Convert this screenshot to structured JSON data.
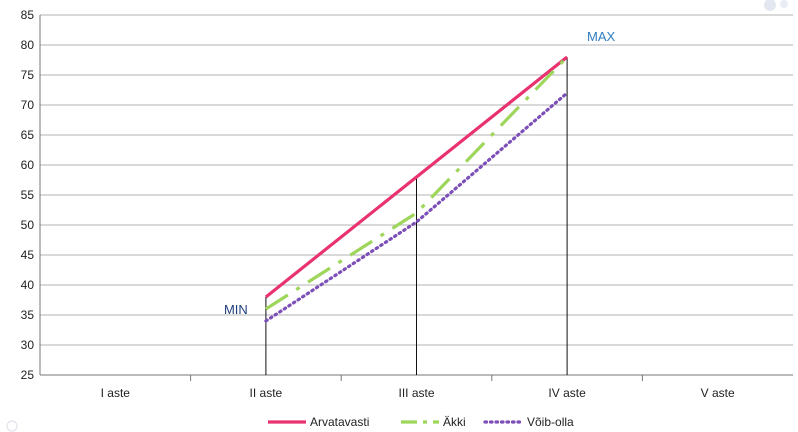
{
  "chart_data": {
    "type": "line",
    "categories": [
      "I aste",
      "II aste",
      "III aste",
      "IV aste",
      "V aste"
    ],
    "ylim": [
      25,
      85
    ],
    "yticks": [
      25,
      30,
      35,
      40,
      45,
      50,
      55,
      60,
      65,
      70,
      75,
      80,
      85
    ],
    "grid": true,
    "legend": "bottom",
    "series": [
      {
        "name": "Arvatavasti",
        "values": [
          null,
          38,
          58,
          78,
          null
        ],
        "color": "#e8336f",
        "style": "solid"
      },
      {
        "name": "Äkki",
        "values": [
          null,
          36,
          52,
          78,
          null
        ],
        "color": "#9ed65b",
        "style": "dashdot"
      },
      {
        "name": "Võib-olla",
        "values": [
          null,
          34,
          50.5,
          72,
          null
        ],
        "color": "#7c4fb8",
        "style": "dotted"
      }
    ],
    "annotations": [
      {
        "text": "MIN",
        "category": "II aste",
        "y": 36,
        "color": "#1f3f7a"
      },
      {
        "text": "MAX",
        "category": "IV aste",
        "y": 81.5,
        "color": "#2e7dc0"
      }
    ]
  }
}
